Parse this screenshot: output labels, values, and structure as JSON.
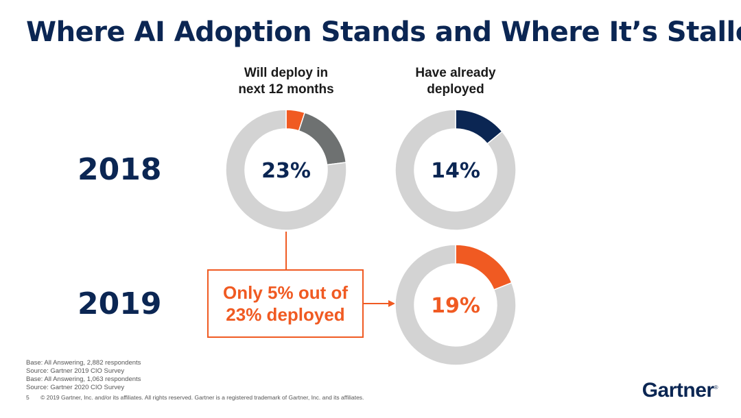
{
  "title": "Where AI Adoption Stands and Where It’s Stalled",
  "headers": {
    "will_deploy": [
      "Will deploy in",
      "next 12 months"
    ],
    "already_deployed": [
      "Have already",
      "deployed"
    ]
  },
  "years": [
    "2018",
    "2019"
  ],
  "callout": {
    "line1": "Only 5% out of",
    "line2": "23% deployed"
  },
  "footnotes": [
    "Base: All Answering, 2,882 respondents",
    "Source: Gartner 2019 CIO Survey",
    "Base: All Answering, 1,063 respondents",
    "Source: Gartner 2020 CIO Survey"
  ],
  "footer": {
    "page": "5",
    "copyright": "© 2019 Gartner, Inc. and/or its affiliates. All rights reserved. Gartner is a registered trademark of Gartner, Inc. and its affiliates."
  },
  "logo": "Gartner",
  "colors": {
    "navy": "#0b2653",
    "orange": "#f05a22",
    "gray": "#6e7171",
    "track": "#d3d3d3"
  },
  "chart_data": [
    {
      "type": "pie",
      "year": "2018",
      "label": "Will deploy in next 12 months",
      "center_label": "23%",
      "slices": [
        {
          "name": "deployed",
          "value": 5,
          "color": "#f05a22"
        },
        {
          "name": "will deploy",
          "value": 18,
          "color": "#6e7171"
        },
        {
          "name": "rest",
          "value": 77,
          "color": "#d3d3d3"
        }
      ]
    },
    {
      "type": "pie",
      "year": "2018",
      "label": "Have already deployed",
      "center_label": "14%",
      "slices": [
        {
          "name": "deployed",
          "value": 14,
          "color": "#0b2653"
        },
        {
          "name": "rest",
          "value": 86,
          "color": "#d3d3d3"
        }
      ]
    },
    {
      "type": "pie",
      "year": "2019",
      "label": "Have already deployed",
      "center_label": "19%",
      "slices": [
        {
          "name": "deployed",
          "value": 19,
          "color": "#f05a22"
        },
        {
          "name": "rest",
          "value": 81,
          "color": "#d3d3d3"
        }
      ]
    }
  ]
}
